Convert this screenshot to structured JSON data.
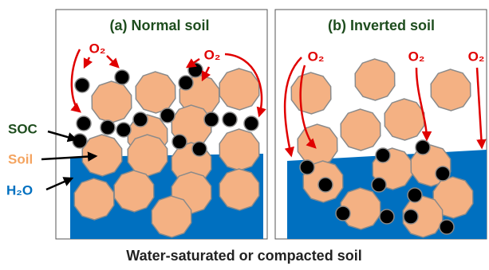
{
  "panels": [
    {
      "title": "(a) Normal soil",
      "o2_labels": [
        "O₂",
        "O₂"
      ]
    },
    {
      "title": "(b) Inverted soil",
      "o2_labels": [
        "O₂",
        "O₂",
        "O₂"
      ]
    }
  ],
  "legend": {
    "soc": "SOC",
    "soil": "Soil",
    "water": "H₂O"
  },
  "caption": "Water-saturated or compacted soil"
}
